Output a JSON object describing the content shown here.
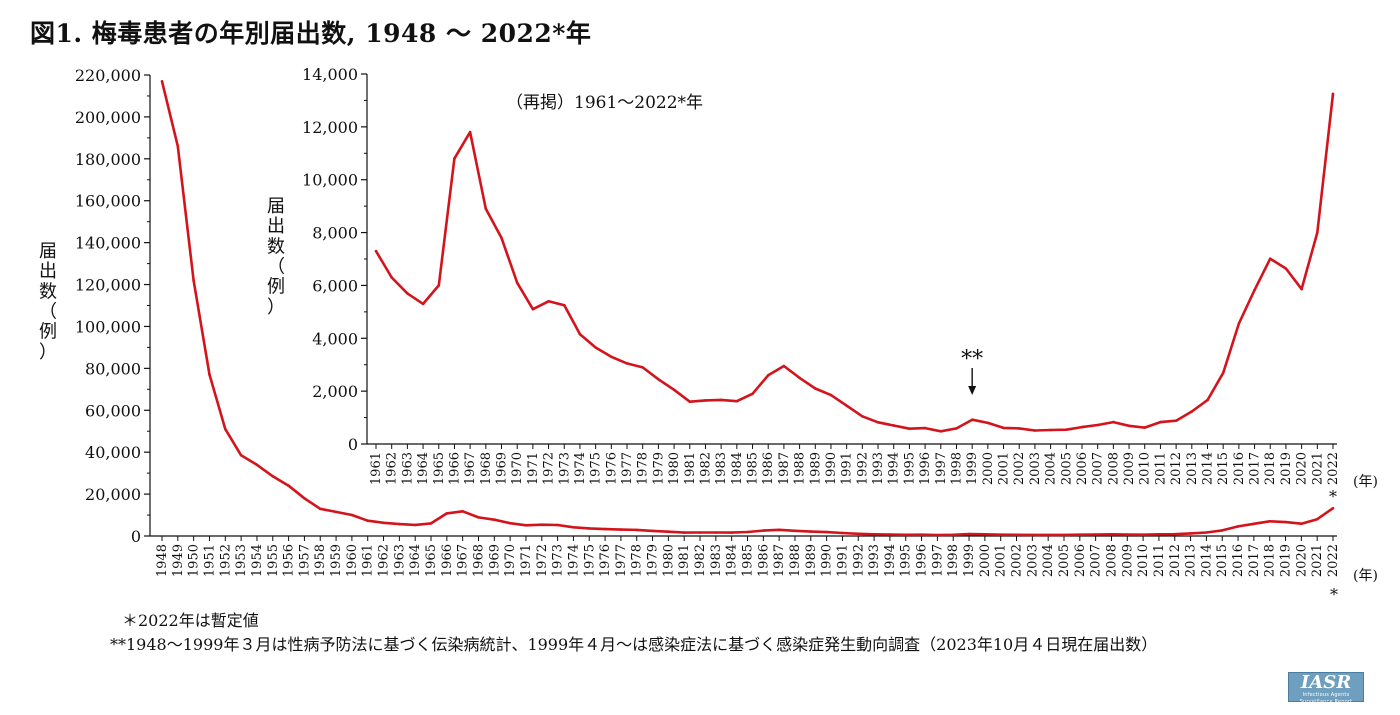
{
  "title": "図1. 梅毒患者の年別届出数, 1948 〜 2022*年",
  "notes": {
    "provisional": "＊2022年は暫定値",
    "sources": "**1948〜1999年３月は性病予防法に基づく伝染病統計、1999年４月〜は感染症法に基づく感染症発生動向調査（2023年10月４日現在届出数）"
  },
  "logo": {
    "main": "IASR",
    "sub": "Infectious Agents Surveillance Report"
  },
  "colors": {
    "line": "#d4141c",
    "axis": "#111111"
  },
  "chart_data": [
    {
      "id": "main",
      "type": "line",
      "ylabel": "届出数（例）",
      "xunit": "(年)",
      "ylim": [
        0,
        220000
      ],
      "yticks": [
        0,
        20000,
        40000,
        60000,
        80000,
        100000,
        120000,
        140000,
        160000,
        180000,
        200000,
        220000
      ],
      "ytick_labels": [
        "0",
        "20,000",
        "40,000",
        "60,000",
        "80,000",
        "100,000",
        "120,000",
        "140,000",
        "160,000",
        "180,000",
        "200,000",
        "220,000"
      ],
      "provisional_marker": "*",
      "x": [
        1948,
        1949,
        1950,
        1951,
        1952,
        1953,
        1954,
        1955,
        1956,
        1957,
        1958,
        1959,
        1960,
        1961,
        1962,
        1963,
        1964,
        1965,
        1966,
        1967,
        1968,
        1969,
        1970,
        1971,
        1972,
        1973,
        1974,
        1975,
        1976,
        1977,
        1978,
        1979,
        1980,
        1981,
        1982,
        1983,
        1984,
        1985,
        1986,
        1987,
        1988,
        1989,
        1990,
        1991,
        1992,
        1993,
        1994,
        1995,
        1996,
        1997,
        1998,
        1999,
        2000,
        2001,
        2002,
        2003,
        2004,
        2005,
        2006,
        2007,
        2008,
        2009,
        2010,
        2011,
        2012,
        2013,
        2014,
        2015,
        2016,
        2017,
        2018,
        2019,
        2020,
        2021,
        2022
      ],
      "values": [
        217000,
        186000,
        122000,
        77000,
        51000,
        38500,
        34000,
        28500,
        24000,
        18000,
        13000,
        11500,
        10000,
        7300,
        6300,
        5700,
        5300,
        6000,
        10800,
        11800,
        8900,
        7800,
        6100,
        5100,
        5400,
        5250,
        4150,
        3650,
        3300,
        3050,
        2900,
        2450,
        2050,
        1600,
        1650,
        1670,
        1620,
        1900,
        2600,
        2950,
        2500,
        2100,
        1850,
        1450,
        1050,
        820,
        700,
        580,
        600,
        480,
        590,
        920,
        800,
        610,
        590,
        510,
        530,
        540,
        640,
        720,
        830,
        690,
        620,
        830,
        880,
        1230,
        1660,
        2690,
        4560,
        5830,
        7010,
        6640,
        5860,
        8000,
        13250
      ]
    },
    {
      "id": "inset",
      "type": "line",
      "annotation": "（再掲）1961〜2022*年",
      "ylabel": "届出数（例）",
      "xunit": "(年)",
      "ylim": [
        0,
        14000
      ],
      "yticks": [
        0,
        2000,
        4000,
        6000,
        8000,
        10000,
        12000,
        14000
      ],
      "ytick_labels": [
        "0",
        "2,000",
        "4,000",
        "6,000",
        "8,000",
        "10,000",
        "12,000",
        "14,000"
      ],
      "marker_label": "**",
      "marker_year": 1999,
      "x": [
        1961,
        1962,
        1963,
        1964,
        1965,
        1966,
        1967,
        1968,
        1969,
        1970,
        1971,
        1972,
        1973,
        1974,
        1975,
        1976,
        1977,
        1978,
        1979,
        1980,
        1981,
        1982,
        1983,
        1984,
        1985,
        1986,
        1987,
        1988,
        1989,
        1990,
        1991,
        1992,
        1993,
        1994,
        1995,
        1996,
        1997,
        1998,
        1999,
        2000,
        2001,
        2002,
        2003,
        2004,
        2005,
        2006,
        2007,
        2008,
        2009,
        2010,
        2011,
        2012,
        2013,
        2014,
        2015,
        2016,
        2017,
        2018,
        2019,
        2020,
        2021,
        2022
      ],
      "values": [
        7300,
        6300,
        5700,
        5300,
        6000,
        10800,
        11800,
        8900,
        7800,
        6100,
        5100,
        5400,
        5250,
        4150,
        3650,
        3300,
        3050,
        2900,
        2450,
        2050,
        1600,
        1650,
        1670,
        1620,
        1900,
        2600,
        2950,
        2500,
        2100,
        1850,
        1450,
        1050,
        820,
        700,
        580,
        600,
        480,
        590,
        920,
        800,
        610,
        590,
        510,
        530,
        540,
        640,
        720,
        830,
        690,
        620,
        830,
        880,
        1230,
        1660,
        2690,
        4560,
        5830,
        7010,
        6640,
        5860,
        8000,
        13250
      ]
    }
  ]
}
